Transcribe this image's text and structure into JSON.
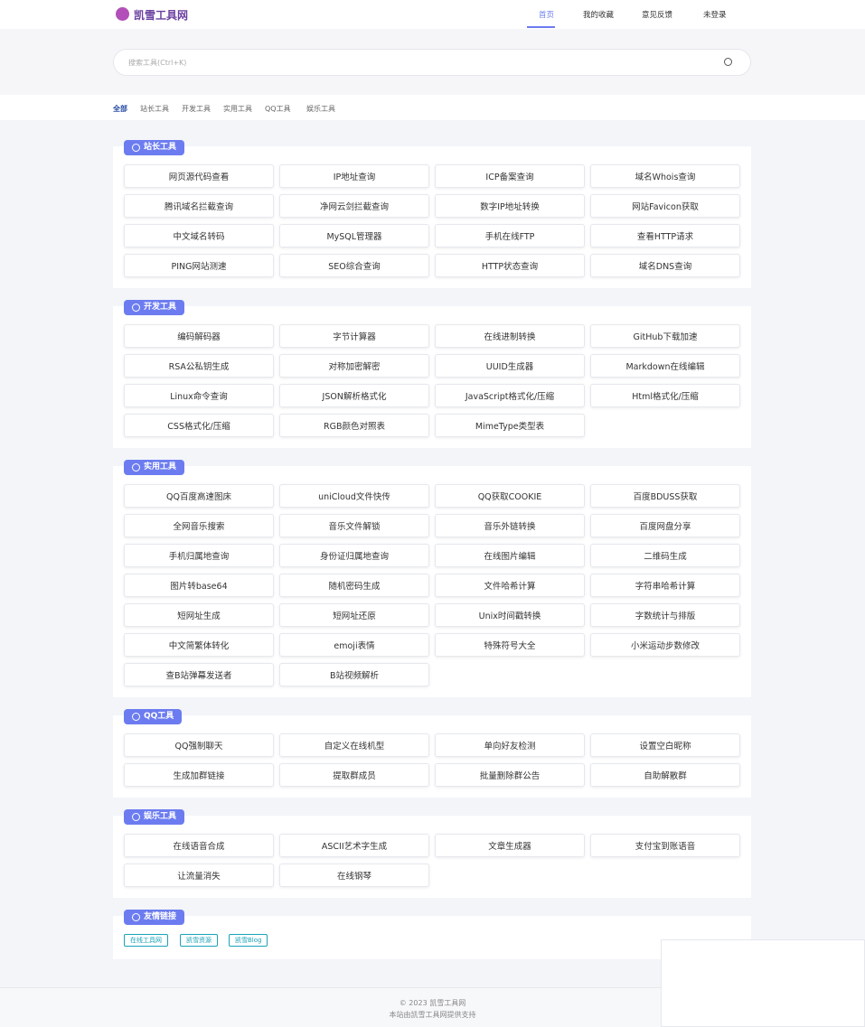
{
  "header": {
    "logo": "凯雪工具网",
    "nav": [
      "首页",
      "我的收藏",
      "意见反馈",
      "未登录"
    ]
  },
  "search": {
    "placeholder": "搜索工具(Ctrl+K)"
  },
  "tabs": [
    "全部",
    "站长工具",
    "开发工具",
    "实用工具",
    "QQ工具",
    "娱乐工具"
  ],
  "sections": [
    {
      "title": "站长工具",
      "items": [
        "网页源代码查看",
        "IP地址查询",
        "ICP备案查询",
        "域名Whois查询",
        "腾讯域名拦截查询",
        "净网云剑拦截查询",
        "数字IP地址转换",
        "网站Favicon获取",
        "中文域名转码",
        "MySQL管理器",
        "手机在线FTP",
        "查看HTTP请求",
        "PING网站测速",
        "SEO综合查询",
        "HTTP状态查询",
        "域名DNS查询"
      ]
    },
    {
      "title": "开发工具",
      "items": [
        "编码解码器",
        "字节计算器",
        "在线进制转换",
        "GitHub下载加速",
        "RSA公私钥生成",
        "对称加密解密",
        "UUID生成器",
        "Markdown在线编辑",
        "Linux命令查询",
        "JSON解析格式化",
        "JavaScript格式化/压缩",
        "Html格式化/压缩",
        "CSS格式化/压缩",
        "RGB颜色对照表",
        "MimeType类型表"
      ]
    },
    {
      "title": "实用工具",
      "items": [
        "QQ百度高速图床",
        "uniCloud文件快传",
        "QQ获取COOKIE",
        "百度BDUSS获取",
        "全网音乐搜索",
        "音乐文件解锁",
        "音乐外链转换",
        "百度网盘分享",
        "手机归属地查询",
        "身份证归属地查询",
        "在线图片编辑",
        "二维码生成",
        "图片转base64",
        "随机密码生成",
        "文件哈希计算",
        "字符串哈希计算",
        "短网址生成",
        "短网址还原",
        "Unix时间戳转换",
        "字数统计与排版",
        "中文简繁体转化",
        "emoji表情",
        "特殊符号大全",
        "小米运动步数修改",
        "查B站弹幕发送者",
        "B站视频解析"
      ]
    },
    {
      "title": "QQ工具",
      "items": [
        "QQ强制聊天",
        "自定义在线机型",
        "单向好友检测",
        "设置空白昵称",
        "生成加群链接",
        "提取群成员",
        "批量删除群公告",
        "自助解散群"
      ]
    },
    {
      "title": "娱乐工具",
      "items": [
        "在线语音合成",
        "ASCII艺术字生成",
        "文章生成器",
        "支付宝到账语音",
        "让流量消失",
        "在线钢琴"
      ]
    }
  ],
  "links": {
    "title": "友情链接",
    "items": [
      "在线工具网",
      "凯雪资源",
      "凯雪Blog"
    ]
  },
  "footer": [
    "© 2023 凯雪工具网",
    "本站由凯雪工具网提供支持"
  ]
}
